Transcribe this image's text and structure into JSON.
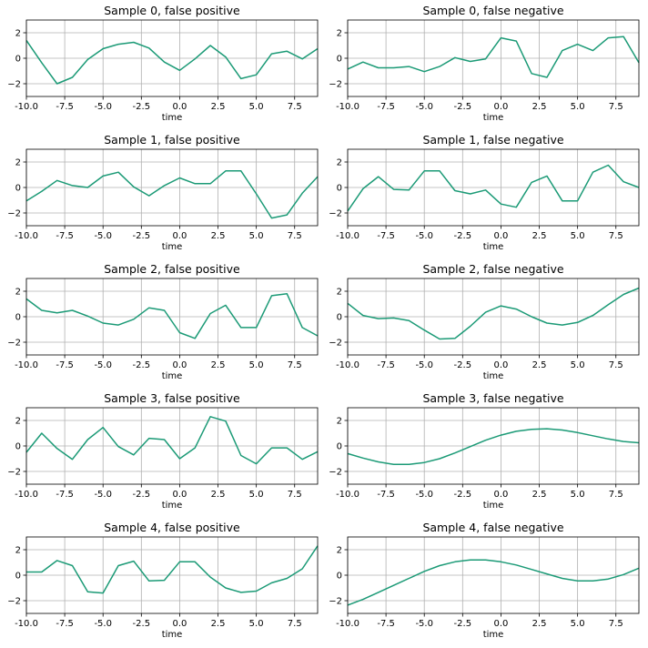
{
  "figure": {
    "line_color": "#1b9a76",
    "grid": true
  },
  "chart_data": [
    {
      "type": "line",
      "title": "Sample 0, false positive",
      "xlabel": "time",
      "ylabel": "",
      "xlim": [
        -10,
        9
      ],
      "ylim": [
        -3,
        3
      ],
      "xticks": [
        "-10.0",
        "-7.5",
        "-5.0",
        "-2.5",
        "0.0",
        "2.5",
        "5.0",
        "7.5"
      ],
      "yticks": [
        "2",
        "0",
        "−2"
      ],
      "x": [
        -10,
        -9,
        -8,
        -7,
        -6,
        -5,
        -4,
        -3,
        -2,
        -1,
        0,
        1,
        2,
        3,
        4,
        5,
        6,
        7,
        8,
        9
      ],
      "series": [
        {
          "values": [
            1.4,
            -0.35,
            -2.0,
            -1.5,
            -0.1,
            0.75,
            1.1,
            1.25,
            0.8,
            -0.3,
            -0.95,
            -0.05,
            1.0,
            0.1,
            -1.6,
            -1.3,
            0.35,
            0.55,
            -0.05,
            0.75
          ]
        }
      ]
    },
    {
      "type": "line",
      "title": "Sample 0, false negative",
      "xlabel": "time",
      "ylabel": "",
      "xlim": [
        -10,
        9
      ],
      "ylim": [
        -3,
        3
      ],
      "xticks": [
        "-10.0",
        "-7.5",
        "-5.0",
        "-2.5",
        "0.0",
        "2.5",
        "5.0",
        "7.5"
      ],
      "yticks": [
        "2",
        "0",
        "−2"
      ],
      "x": [
        -10,
        -9,
        -8,
        -7,
        -6,
        -5,
        -4,
        -3,
        -2,
        -1,
        0,
        1,
        2,
        3,
        4,
        5,
        6,
        7,
        8,
        9
      ],
      "series": [
        {
          "values": [
            -0.85,
            -0.3,
            -0.75,
            -0.75,
            -0.65,
            -1.05,
            -0.65,
            0.05,
            -0.25,
            -0.05,
            1.6,
            1.35,
            -1.2,
            -1.5,
            0.6,
            1.1,
            0.6,
            1.6,
            1.7,
            -0.35
          ]
        }
      ]
    },
    {
      "type": "line",
      "title": "Sample 1, false positive",
      "xlabel": "time",
      "ylabel": "",
      "xlim": [
        -10,
        9
      ],
      "ylim": [
        -3,
        3
      ],
      "xticks": [
        "-10.0",
        "-7.5",
        "-5.0",
        "-2.5",
        "0.0",
        "2.5",
        "5.0",
        "7.5"
      ],
      "yticks": [
        "2",
        "0",
        "−2"
      ],
      "x": [
        -10,
        -9,
        -8,
        -7,
        -6,
        -5,
        -4,
        -3,
        -2,
        -1,
        0,
        1,
        2,
        3,
        4,
        5,
        6,
        7,
        8,
        9
      ],
      "series": [
        {
          "values": [
            -1.05,
            -0.3,
            0.55,
            0.15,
            0.0,
            0.9,
            1.2,
            0.05,
            -0.65,
            0.15,
            0.75,
            0.3,
            0.3,
            1.3,
            1.3,
            -0.5,
            -2.4,
            -2.15,
            -0.45,
            0.85
          ]
        }
      ]
    },
    {
      "type": "line",
      "title": "Sample 1, false negative",
      "xlabel": "time",
      "ylabel": "",
      "xlim": [
        -10,
        9
      ],
      "ylim": [
        -3,
        3
      ],
      "xticks": [
        "-10.0",
        "-7.5",
        "-5.0",
        "-2.5",
        "0.0",
        "2.5",
        "5.0",
        "7.5"
      ],
      "yticks": [
        "2",
        "0",
        "−2"
      ],
      "x": [
        -10,
        -9,
        -8,
        -7,
        -6,
        -5,
        -4,
        -3,
        -2,
        -1,
        0,
        1,
        2,
        3,
        4,
        5,
        6,
        7,
        8,
        9
      ],
      "series": [
        {
          "values": [
            -1.85,
            -0.1,
            0.85,
            -0.15,
            -0.2,
            1.3,
            1.3,
            -0.25,
            -0.5,
            -0.2,
            -1.3,
            -1.55,
            0.4,
            0.9,
            -1.05,
            -1.05,
            1.2,
            1.75,
            0.45,
            0.0
          ]
        }
      ]
    },
    {
      "type": "line",
      "title": "Sample 2, false positive",
      "xlabel": "time",
      "ylabel": "",
      "xlim": [
        -10,
        9
      ],
      "ylim": [
        -3,
        3
      ],
      "xticks": [
        "-10.0",
        "-7.5",
        "-5.0",
        "-2.5",
        "0.0",
        "2.5",
        "5.0",
        "7.5"
      ],
      "yticks": [
        "2",
        "0",
        "−2"
      ],
      "x": [
        -10,
        -9,
        -8,
        -7,
        -6,
        -5,
        -4,
        -3,
        -2,
        -1,
        0,
        1,
        2,
        3,
        4,
        5,
        6,
        7,
        8,
        9
      ],
      "series": [
        {
          "values": [
            1.4,
            0.5,
            0.3,
            0.5,
            0.05,
            -0.5,
            -0.65,
            -0.2,
            0.7,
            0.5,
            -1.25,
            -1.7,
            0.25,
            0.9,
            -0.85,
            -0.85,
            1.65,
            1.8,
            -0.85,
            -1.5
          ]
        }
      ]
    },
    {
      "type": "line",
      "title": "Sample 2, false negative",
      "xlabel": "time",
      "ylabel": "",
      "xlim": [
        -10,
        9
      ],
      "ylim": [
        -3,
        3
      ],
      "xticks": [
        "-10.0",
        "-7.5",
        "-5.0",
        "-2.5",
        "0.0",
        "2.5",
        "5.0",
        "7.5"
      ],
      "yticks": [
        "2",
        "0",
        "−2"
      ],
      "x": [
        -10,
        -9,
        -8,
        -7,
        -6,
        -5,
        -4,
        -3,
        -2,
        -1,
        0,
        1,
        2,
        3,
        4,
        5,
        6,
        7,
        8,
        9
      ],
      "series": [
        {
          "values": [
            1.05,
            0.1,
            -0.15,
            -0.1,
            -0.3,
            -1.05,
            -1.75,
            -1.7,
            -0.75,
            0.35,
            0.85,
            0.6,
            0.0,
            -0.5,
            -0.65,
            -0.45,
            0.1,
            0.95,
            1.75,
            2.25
          ]
        }
      ]
    },
    {
      "type": "line",
      "title": "Sample 3, false positive",
      "xlabel": "time",
      "ylabel": "",
      "xlim": [
        -10,
        9
      ],
      "ylim": [
        -3,
        3
      ],
      "xticks": [
        "-10.0",
        "-7.5",
        "-5.0",
        "-2.5",
        "0.0",
        "2.5",
        "5.0",
        "7.5"
      ],
      "yticks": [
        "2",
        "0",
        "−2"
      ],
      "x": [
        -10,
        -9,
        -8,
        -7,
        -6,
        -5,
        -4,
        -3,
        -2,
        -1,
        0,
        1,
        2,
        3,
        4,
        5,
        6,
        7,
        8,
        9
      ],
      "series": [
        {
          "values": [
            -0.5,
            1.0,
            -0.2,
            -1.05,
            0.5,
            1.45,
            -0.05,
            -0.7,
            0.6,
            0.5,
            -1.0,
            -0.15,
            2.3,
            1.95,
            -0.75,
            -1.4,
            -0.15,
            -0.15,
            -1.05,
            -0.45
          ]
        }
      ]
    },
    {
      "type": "line",
      "title": "Sample 3, false negative",
      "xlabel": "time",
      "ylabel": "",
      "xlim": [
        -10,
        9
      ],
      "ylim": [
        -3,
        3
      ],
      "xticks": [
        "-10.0",
        "-7.5",
        "-5.0",
        "-2.5",
        "0.0",
        "2.5",
        "5.0",
        "7.5"
      ],
      "yticks": [
        "2",
        "0",
        "−2"
      ],
      "x": [
        -10,
        -9,
        -8,
        -7,
        -6,
        -5,
        -4,
        -3,
        -2,
        -1,
        0,
        1,
        2,
        3,
        4,
        5,
        6,
        7,
        8,
        9
      ],
      "series": [
        {
          "values": [
            -0.6,
            -0.95,
            -1.25,
            -1.45,
            -1.45,
            -1.3,
            -1.0,
            -0.55,
            -0.05,
            0.45,
            0.85,
            1.15,
            1.3,
            1.35,
            1.25,
            1.05,
            0.8,
            0.55,
            0.35,
            0.25
          ]
        }
      ]
    },
    {
      "type": "line",
      "title": "Sample 4, false positive",
      "xlabel": "time",
      "ylabel": "",
      "xlim": [
        -10,
        9
      ],
      "ylim": [
        -3,
        3
      ],
      "xticks": [
        "-10.0",
        "-7.5",
        "-5.0",
        "-2.5",
        "0.0",
        "2.5",
        "5.0",
        "7.5"
      ],
      "yticks": [
        "2",
        "0",
        "−2"
      ],
      "x": [
        -10,
        -9,
        -8,
        -7,
        -6,
        -5,
        -4,
        -3,
        -2,
        -1,
        0,
        1,
        2,
        3,
        4,
        5,
        6,
        7,
        8,
        9
      ],
      "series": [
        {
          "values": [
            0.25,
            0.25,
            1.15,
            0.75,
            -1.3,
            -1.4,
            0.75,
            1.1,
            -0.45,
            -0.4,
            1.05,
            1.05,
            -0.15,
            -1.0,
            -1.35,
            -1.25,
            -0.6,
            -0.25,
            0.5,
            2.3
          ]
        }
      ]
    },
    {
      "type": "line",
      "title": "Sample 4, false negative",
      "xlabel": "time",
      "ylabel": "",
      "xlim": [
        -10,
        9
      ],
      "ylim": [
        -3,
        3
      ],
      "xticks": [
        "-10.0",
        "-7.5",
        "-5.0",
        "-2.5",
        "0.0",
        "2.5",
        "5.0",
        "7.5"
      ],
      "yticks": [
        "2",
        "0",
        "−2"
      ],
      "x": [
        -10,
        -9,
        -8,
        -7,
        -6,
        -5,
        -4,
        -3,
        -2,
        -1,
        0,
        1,
        2,
        3,
        4,
        5,
        6,
        7,
        8,
        9
      ],
      "series": [
        {
          "values": [
            -2.35,
            -1.9,
            -1.35,
            -0.8,
            -0.25,
            0.3,
            0.75,
            1.05,
            1.2,
            1.2,
            1.05,
            0.8,
            0.45,
            0.1,
            -0.25,
            -0.45,
            -0.45,
            -0.3,
            0.05,
            0.55
          ]
        }
      ]
    }
  ]
}
